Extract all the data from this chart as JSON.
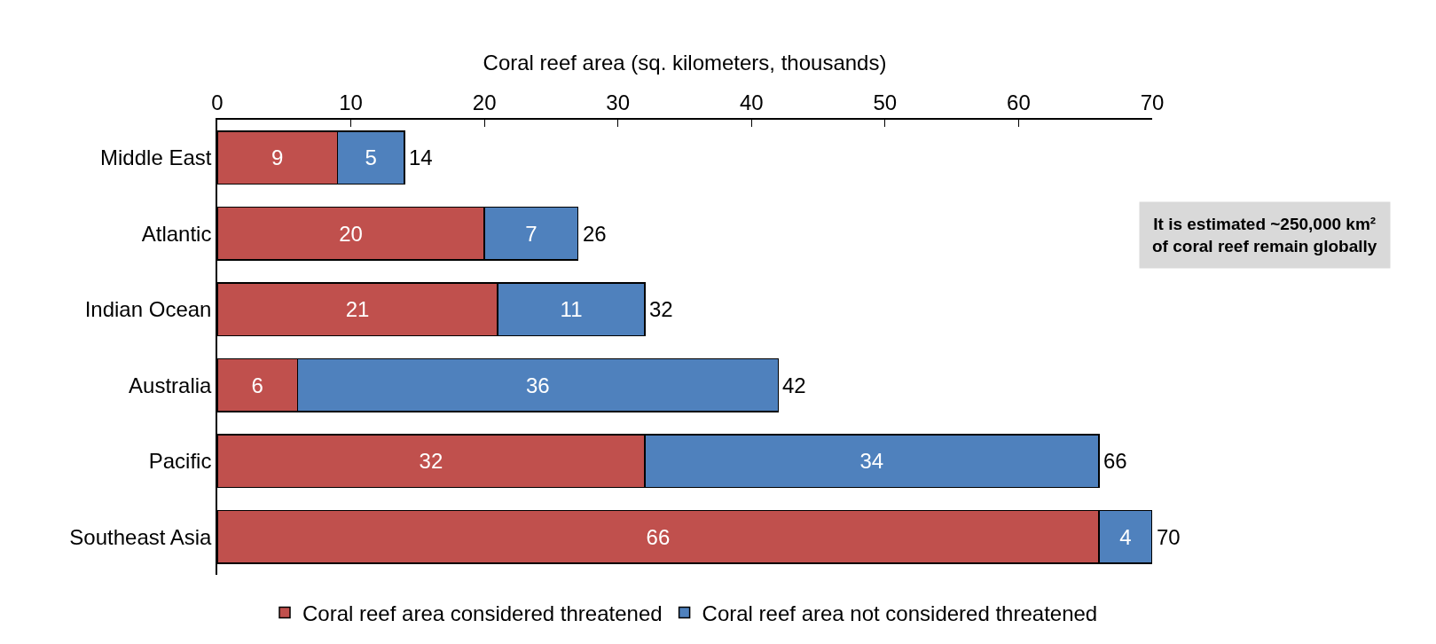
{
  "chart_data": {
    "type": "bar",
    "orientation": "horizontal",
    "stacked": true,
    "xlabel": "Coral reef area (sq. kilometers, thousands)",
    "categories": [
      "Middle East",
      "Atlantic",
      "Indian Ocean",
      "Australia",
      "Pacific",
      "Southeast Asia"
    ],
    "series": [
      {
        "name": "Coral reef area considered threatened",
        "color": "#c0504d",
        "values": [
          9,
          20,
          21,
          6,
          32,
          66
        ]
      },
      {
        "name": "Coral reef area not considered threatened",
        "color": "#4f81bd",
        "values": [
          5,
          7,
          11,
          36,
          34,
          4
        ]
      }
    ],
    "xlim": [
      0,
      70
    ],
    "xticks": [
      0,
      10,
      20,
      30,
      40,
      50,
      60,
      70
    ],
    "data_labels": true,
    "totals": [
      "14",
      "26",
      "32",
      "42",
      "66",
      "70"
    ],
    "annotations": [
      "It is estimated ~250,000 km² of coral reef remain globally"
    ],
    "legend": "bottom"
  }
}
